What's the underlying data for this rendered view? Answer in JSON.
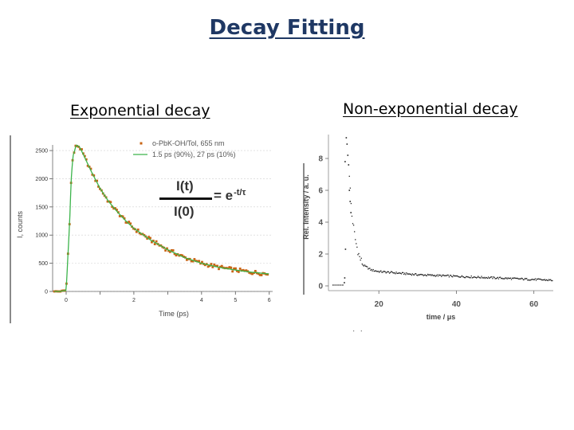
{
  "title": "Decay Fitting",
  "subtitles": {
    "left": "Exponential decay",
    "right": "Non-exponential decay"
  },
  "formula": {
    "numerator": "I(t)",
    "denominator": "I(0)",
    "rhs": "= e",
    "exponent": "-t/τ"
  },
  "colors": {
    "title": "#1f3864",
    "data_points": "#c86414",
    "fit_line": "#3cb44b",
    "right_points": "#222222"
  },
  "chart_data": [
    {
      "type": "scatter",
      "xlabel": "Time (ps)",
      "ylabel": "I, counts",
      "xlim": [
        -0.4,
        6.1
      ],
      "ylim": [
        0,
        2600
      ],
      "xticks": [
        0,
        1,
        2,
        3,
        4,
        5,
        6
      ],
      "xtick_labels": [
        "0",
        "",
        "2",
        "",
        "4",
        "5",
        "6"
      ],
      "yticks": [
        0,
        500,
        1000,
        1500,
        2000,
        2500
      ],
      "ytick_labels": [
        "0",
        "500",
        "1000",
        "1500",
        "2000",
        "2500"
      ],
      "legend": [
        "o-PbK-OH/Tol, 655 nm",
        "1.5 ps (90%), 27 ps (10%)"
      ],
      "legend_position": "top-right",
      "series": [
        {
          "name": "o-PbK-OH/Tol, 655 nm",
          "kind": "points",
          "x": [
            -0.2,
            0.0,
            0.1,
            0.15,
            0.2,
            0.3,
            0.4,
            0.5,
            0.75,
            1.0,
            1.25,
            1.5,
            1.75,
            2.0,
            2.5,
            3.0,
            3.5,
            4.0,
            4.5,
            5.0,
            5.5,
            6.0
          ],
          "y": [
            0,
            20,
            1200,
            2000,
            2400,
            2600,
            2560,
            2440,
            2120,
            1830,
            1600,
            1420,
            1260,
            1120,
            910,
            740,
            600,
            500,
            430,
            380,
            340,
            310
          ]
        },
        {
          "name": "1.5 ps (90%), 27 ps (10%)",
          "kind": "line",
          "x": [
            -0.2,
            0.0,
            0.1,
            0.15,
            0.2,
            0.3,
            0.4,
            0.5,
            0.75,
            1.0,
            1.25,
            1.5,
            1.75,
            2.0,
            2.5,
            3.0,
            3.5,
            4.0,
            4.5,
            5.0,
            5.5,
            6.0
          ],
          "y": [
            0,
            20,
            1200,
            2000,
            2400,
            2600,
            2560,
            2440,
            2120,
            1830,
            1600,
            1420,
            1260,
            1120,
            910,
            740,
            600,
            500,
            430,
            380,
            340,
            310
          ]
        }
      ]
    },
    {
      "type": "scatter",
      "xlabel": "time / μs",
      "ylabel": "Rel. Intensity / a. u.",
      "xlim": [
        7,
        65
      ],
      "ylim": [
        -0.3,
        9.5
      ],
      "xticks": [
        20,
        40,
        60
      ],
      "xtick_labels": [
        "20",
        "40",
        "60"
      ],
      "yticks": [
        0,
        2,
        4,
        6,
        8
      ],
      "ytick_labels": [
        "0",
        "2",
        "4",
        "6",
        "8"
      ],
      "series": [
        {
          "name": "",
          "kind": "points",
          "x": [
            10,
            11,
            11.5,
            12,
            12.5,
            13,
            14,
            15,
            16,
            18,
            20,
            25,
            30,
            40,
            50,
            60,
            65
          ],
          "y": [
            0.1,
            0.6,
            7,
            9.2,
            6.5,
            4.5,
            2.8,
            1.8,
            1.3,
            1.0,
            0.9,
            0.8,
            0.7,
            0.6,
            0.5,
            0.4,
            0.35
          ]
        }
      ]
    }
  ]
}
